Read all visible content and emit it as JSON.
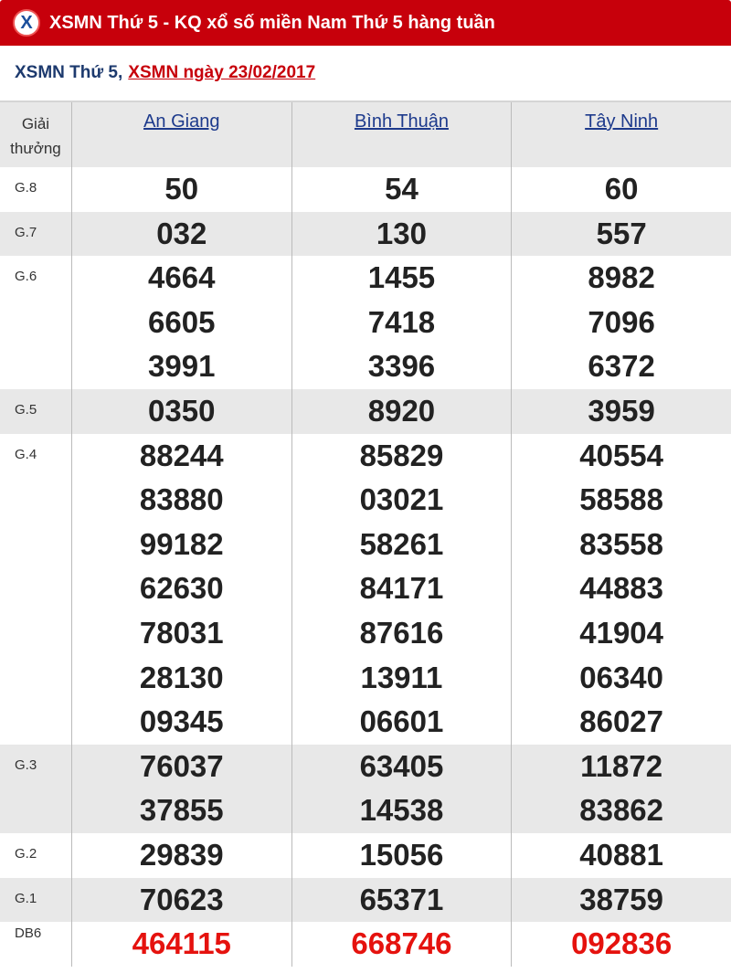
{
  "header": {
    "title": "XSMN Thứ 5 - KQ xổ số miền Nam Thứ 5 hàng tuần",
    "logo_icon": "x-logo-icon"
  },
  "subheader": {
    "text": "XSMN Thứ 5,",
    "link": "XSMN ngày 23/02/2017"
  },
  "table": {
    "prize_header": "Giải thưởng",
    "provinces": [
      "An Giang",
      "Bình Thuận",
      "Tây Ninh"
    ],
    "rows": [
      {
        "label": "G.8",
        "values": [
          [
            "50"
          ],
          [
            "54"
          ],
          [
            "60"
          ]
        ]
      },
      {
        "label": "G.7",
        "values": [
          [
            "032"
          ],
          [
            "130"
          ],
          [
            "557"
          ]
        ]
      },
      {
        "label": "G.6",
        "values": [
          [
            "4664",
            "6605",
            "3991"
          ],
          [
            "1455",
            "7418",
            "3396"
          ],
          [
            "8982",
            "7096",
            "6372"
          ]
        ]
      },
      {
        "label": "G.5",
        "values": [
          [
            "0350"
          ],
          [
            "8920"
          ],
          [
            "3959"
          ]
        ]
      },
      {
        "label": "G.4",
        "values": [
          [
            "88244",
            "83880",
            "99182",
            "62630",
            "78031",
            "28130",
            "09345"
          ],
          [
            "85829",
            "03021",
            "58261",
            "84171",
            "87616",
            "13911",
            "06601"
          ],
          [
            "40554",
            "58588",
            "83558",
            "44883",
            "41904",
            "06340",
            "86027"
          ]
        ]
      },
      {
        "label": "G.3",
        "values": [
          [
            "76037",
            "37855"
          ],
          [
            "63405",
            "14538"
          ],
          [
            "11872",
            "83862"
          ]
        ]
      },
      {
        "label": "G.2",
        "values": [
          [
            "29839"
          ],
          [
            "15056"
          ],
          [
            "40881"
          ]
        ]
      },
      {
        "label": "G.1",
        "values": [
          [
            "70623"
          ],
          [
            "65371"
          ],
          [
            "38759"
          ]
        ]
      },
      {
        "label": "DB6",
        "values": [
          [
            "464115"
          ],
          [
            "668746"
          ],
          [
            "092836"
          ]
        ]
      }
    ]
  },
  "colors": {
    "brand_red": "#c7000b",
    "special_prize": "#e5120e",
    "link_blue": "#1d3a8c",
    "stripe": "#e8e8e8"
  }
}
